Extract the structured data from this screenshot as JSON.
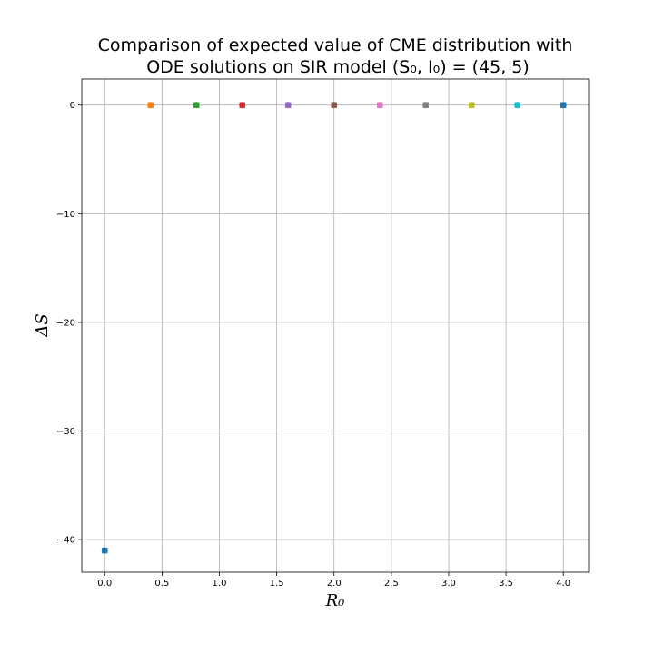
{
  "chart_data": {
    "type": "scatter",
    "title": [
      "Comparison of expected value of CME distribution with",
      "ODE solutions on SIR model (S₀, I₀) = (45, 5)"
    ],
    "xlabel": "R₀",
    "ylabel": "ΔS",
    "xlim": [
      -0.2,
      4.22
    ],
    "ylim": [
      -43.0,
      2.4
    ],
    "xticks": [
      0.0,
      0.5,
      1.0,
      1.5,
      2.0,
      2.5,
      3.0,
      3.5,
      4.0
    ],
    "xtick_labels": [
      "0.0",
      "0.5",
      "1.0",
      "1.5",
      "2.0",
      "2.5",
      "3.0",
      "3.5",
      "4.0"
    ],
    "yticks": [
      0,
      -10,
      -20,
      -30,
      -40
    ],
    "ytick_labels": [
      "0",
      "−10",
      "−20",
      "−30",
      "−40"
    ],
    "grid": true,
    "series": [
      {
        "x": 0.0,
        "y": -41.0,
        "color": "#1f77b4"
      },
      {
        "x": 0.4,
        "y": 0.0,
        "color": "#ff7f0e"
      },
      {
        "x": 0.8,
        "y": 0.0,
        "color": "#2ca02c"
      },
      {
        "x": 1.2,
        "y": 0.0,
        "color": "#d62728"
      },
      {
        "x": 1.6,
        "y": 0.0,
        "color": "#9467bd"
      },
      {
        "x": 2.0,
        "y": 0.0,
        "color": "#8c564b"
      },
      {
        "x": 2.4,
        "y": 0.0,
        "color": "#e377c2"
      },
      {
        "x": 2.8,
        "y": 0.0,
        "color": "#7f7f7f"
      },
      {
        "x": 3.2,
        "y": 0.0,
        "color": "#bcbd22"
      },
      {
        "x": 3.6,
        "y": 0.0,
        "color": "#17becf"
      },
      {
        "x": 4.0,
        "y": 0.0,
        "color": "#1f77b4"
      }
    ]
  }
}
